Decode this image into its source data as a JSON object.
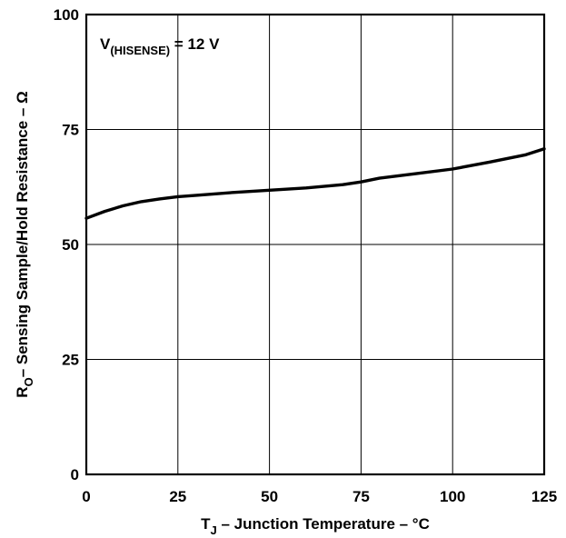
{
  "chart_data": {
    "type": "line",
    "title": "",
    "xlabel": {
      "main": "T",
      "sub": "J",
      "rest": " – Junction Temperature – °C"
    },
    "ylabel": {
      "main": "R",
      "sub": "O",
      "rest": "– Sensing Sample/Hold Resistance – Ω"
    },
    "annotation": {
      "main": "V",
      "sub": "(HISENSE)",
      "rest": " = 12 V"
    },
    "xlim": [
      0,
      125
    ],
    "ylim": [
      0,
      100
    ],
    "xticks": [
      0,
      25,
      50,
      75,
      100,
      125
    ],
    "yticks": [
      0,
      25,
      50,
      75,
      100
    ],
    "xtick_labels": [
      "0",
      "25",
      "50",
      "75",
      "100",
      "125"
    ],
    "ytick_labels": [
      "0",
      "25",
      "50",
      "75",
      "100"
    ],
    "grid": true,
    "series": [
      {
        "color": "#000000",
        "x": [
          0,
          5,
          10,
          15,
          20,
          25,
          30,
          40,
          50,
          60,
          70,
          75,
          80,
          90,
          100,
          110,
          120,
          125
        ],
        "y": [
          55.7,
          57.2,
          58.4,
          59.3,
          59.9,
          60.4,
          60.7,
          61.3,
          61.8,
          62.3,
          63.0,
          63.6,
          64.4,
          65.4,
          66.4,
          67.9,
          69.5,
          70.8
        ]
      }
    ]
  }
}
